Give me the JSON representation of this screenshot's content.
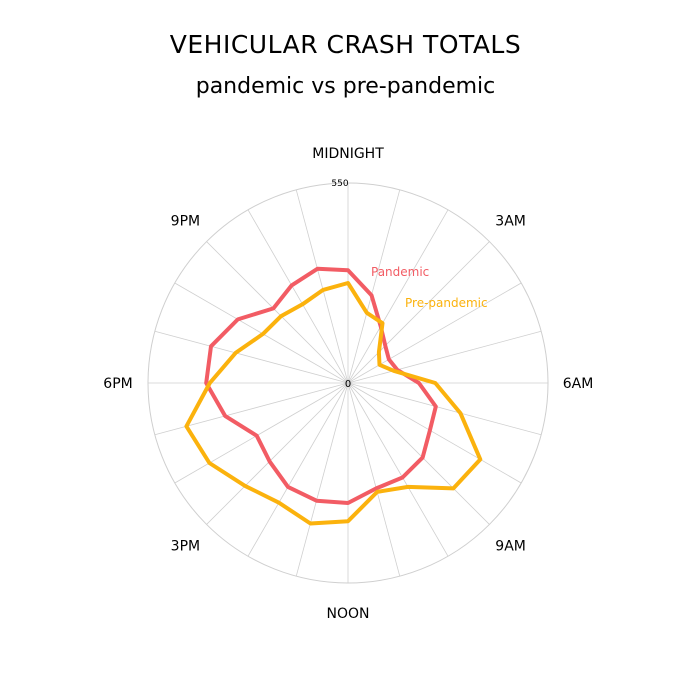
{
  "chart_data": {
    "type": "radar",
    "title": "VEHICULAR CRASH TOTALS",
    "subtitle": "pandemic vs pre-pandemic",
    "axis_labels": [
      "MIDNIGHT",
      "3AM",
      "6AM",
      "9AM",
      "NOON",
      "3PM",
      "6PM",
      "9PM"
    ],
    "hours": [
      0,
      1,
      2,
      3,
      4,
      5,
      6,
      7,
      8,
      9,
      10,
      11,
      12,
      13,
      14,
      15,
      16,
      17,
      18,
      19,
      20,
      21,
      22,
      23
    ],
    "radial_range": [
      0,
      550
    ],
    "radial_tick_labels": [
      "0",
      "550"
    ],
    "grid": true,
    "series": [
      {
        "name": "Pandemic",
        "color": "#f25c64",
        "values": [
          310,
          250,
          180,
          145,
          130,
          140,
          195,
          250,
          260,
          290,
          300,
          300,
          330,
          335,
          330,
          305,
          290,
          350,
          390,
          390,
          350,
          290,
          310,
          325
        ]
      },
      {
        "name": "Pre-pandemic",
        "color": "#fbb20d",
        "values": [
          275,
          200,
          190,
          120,
          100,
          130,
          240,
          320,
          420,
          410,
          330,
          310,
          380,
          400,
          380,
          400,
          440,
          460,
          380,
          320,
          270,
          260,
          250,
          265
        ]
      }
    ],
    "legend": [
      {
        "label": "Pandemic",
        "color": "#f25c64"
      },
      {
        "label": "Pre-pandemic",
        "color": "#fbb20d"
      }
    ]
  }
}
